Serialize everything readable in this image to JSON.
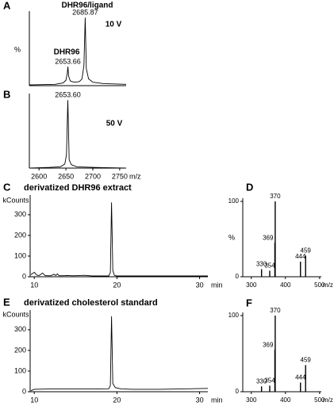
{
  "chart_data": [
    {
      "type": "line",
      "panel": "A",
      "color": "#000000",
      "ylabel": "%",
      "annotations": [
        "DHR96/ligand",
        "DHR96",
        "10 V"
      ],
      "x": [
        2582,
        2630,
        2645,
        2650,
        2652.5,
        2653.66,
        2655,
        2658,
        2665,
        2675,
        2680,
        2683.5,
        2685.87,
        2688,
        2692,
        2700,
        2720,
        2762
      ],
      "values": [
        1,
        2,
        4,
        8,
        18,
        28,
        14,
        7,
        5,
        6,
        10,
        30,
        100,
        25,
        10,
        5,
        3,
        2
      ],
      "x_labels": [
        null,
        null,
        null,
        null,
        null,
        "2653.66",
        null,
        null,
        null,
        null,
        null,
        null,
        "2685.87",
        null,
        null,
        null,
        null,
        null
      ],
      "xlim": [
        2582,
        2762
      ],
      "ylim": [
        0,
        105
      ]
    },
    {
      "type": "line",
      "panel": "B",
      "color": "#000000",
      "xlabel": "m/z",
      "annotations": [
        "50 V"
      ],
      "x": [
        2582,
        2620,
        2640,
        2648,
        2651,
        2653.6,
        2656,
        2660,
        2670,
        2700,
        2762
      ],
      "values": [
        0,
        1,
        2,
        6,
        20,
        100,
        12,
        5,
        2,
        1,
        0
      ],
      "x_labels": [
        null,
        null,
        null,
        null,
        null,
        "2653.60",
        null,
        null,
        null,
        null,
        null
      ],
      "xlim": [
        2582,
        2762
      ],
      "ylim": [
        0,
        105
      ],
      "xticks": [
        2600,
        2650,
        2700,
        2750
      ]
    },
    {
      "type": "line",
      "panel": "C",
      "title": "derivatized DHR96 extract",
      "color": "#000000",
      "ylabel": "kCounts",
      "xlabel": "min",
      "x": [
        9.6,
        10,
        10.3,
        10.6,
        11,
        11.3,
        11.6,
        12,
        12.4,
        12.6,
        12.8,
        13,
        13.5,
        14,
        14.5,
        15,
        16,
        17,
        18,
        19,
        19.2,
        19.35,
        19.5,
        19.7,
        20,
        22,
        25,
        28,
        31
      ],
      "values": [
        10,
        22,
        8,
        6,
        18,
        6,
        5,
        5,
        12,
        6,
        14,
        5,
        5,
        6,
        5,
        5,
        7,
        4,
        4,
        4,
        20,
        360,
        30,
        6,
        4,
        4,
        4,
        4,
        4
      ],
      "xlim": [
        9.5,
        31
      ],
      "ylim": [
        0,
        380
      ],
      "xticks": [
        10,
        20,
        30
      ],
      "yticks": [
        0,
        100,
        200,
        300
      ]
    },
    {
      "type": "bar",
      "panel": "D",
      "color": "#000000",
      "ylabel": "%",
      "xlabel": "m/z",
      "x": [
        330,
        354,
        369,
        370,
        444,
        459
      ],
      "values": [
        10,
        8,
        45,
        100,
        20,
        28
      ],
      "xlim": [
        275,
        505
      ],
      "ylim": [
        0,
        100
      ],
      "xticks": [
        300,
        400,
        500
      ],
      "yticks": [
        0,
        100
      ]
    },
    {
      "type": "line",
      "panel": "E",
      "title": "derivatized cholesterol standard",
      "color": "#000000",
      "ylabel": "kCounts",
      "xlabel": "min",
      "x": [
        9.6,
        10,
        12,
        15,
        18,
        19,
        19.2,
        19.35,
        19.5,
        19.8,
        20.5,
        22,
        25,
        28,
        31
      ],
      "values": [
        5,
        12,
        14,
        14,
        13,
        14,
        30,
        365,
        40,
        20,
        14,
        12,
        12,
        14,
        16
      ],
      "xlim": [
        9.5,
        31
      ],
      "ylim": [
        0,
        380
      ],
      "xticks": [
        10,
        20,
        30
      ],
      "yticks": [
        0,
        100,
        200,
        300
      ]
    },
    {
      "type": "bar",
      "panel": "F",
      "color": "#000000",
      "xlabel": "m/z",
      "x": [
        330,
        354,
        369,
        370,
        444,
        459
      ],
      "values": [
        7,
        8,
        55,
        100,
        12,
        35
      ],
      "xlim": [
        275,
        505
      ],
      "ylim": [
        0,
        100
      ],
      "xticks": [
        300,
        400,
        500
      ],
      "yticks": [
        0,
        100
      ]
    }
  ]
}
